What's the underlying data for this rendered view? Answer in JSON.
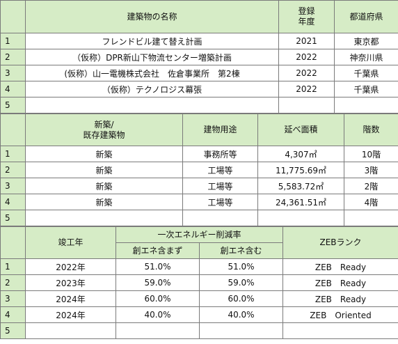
{
  "table1": {
    "header": {
      "name": "建築物の名称",
      "year": "登録\n年度",
      "pref": "都道府県"
    },
    "rows": [
      [
        "1",
        "フレンドビル建て替え計画",
        "2021",
        "東京都"
      ],
      [
        "2",
        "（仮称）DPR新山下物流センター増築計画",
        "2022",
        "神奈川県"
      ],
      [
        "3",
        "(仮称）山一電機株式会社　佐倉事業所　第2棟",
        "2022",
        "千葉県"
      ],
      [
        "4",
        "（仮称）テクノロジス幕張",
        "2022",
        "千葉県"
      ],
      [
        "5"
      ]
    ]
  },
  "table2": {
    "header": {
      "kind": "新築/\n既存建築物",
      "use": "建物用途",
      "area": "延べ面積",
      "floors": "階数"
    },
    "rows": [
      [
        "1",
        "新築",
        "事務所等",
        "4,307㎡",
        "10階"
      ],
      [
        "2",
        "新築",
        "工場等",
        "11,775.69㎡",
        "3階"
      ],
      [
        "3",
        "新築",
        "工場等",
        "5,583.72㎡",
        "2階"
      ],
      [
        "4",
        "新築",
        "工場等",
        "24,361.51㎡",
        "4階"
      ],
      [
        "5"
      ]
    ]
  },
  "table3": {
    "header": {
      "completed": "竣工年",
      "reduction": "一次エネルギー削減率",
      "without": "創エネ含まず",
      "with": "創エネ含む",
      "zeb": "ZEBランク"
    },
    "rows": [
      [
        "1",
        "2022年",
        "51.0%",
        "51.0%",
        "ZEB　Ready"
      ],
      [
        "2",
        "2023年",
        "59.0%",
        "59.0%",
        "ZEB　Ready"
      ],
      [
        "3",
        "2024年",
        "60.0%",
        "60.0%",
        "ZEB　Ready"
      ],
      [
        "4",
        "2024年",
        "40.0%",
        "40.0%",
        "ZEB　Oriented"
      ],
      [
        "5"
      ]
    ]
  }
}
